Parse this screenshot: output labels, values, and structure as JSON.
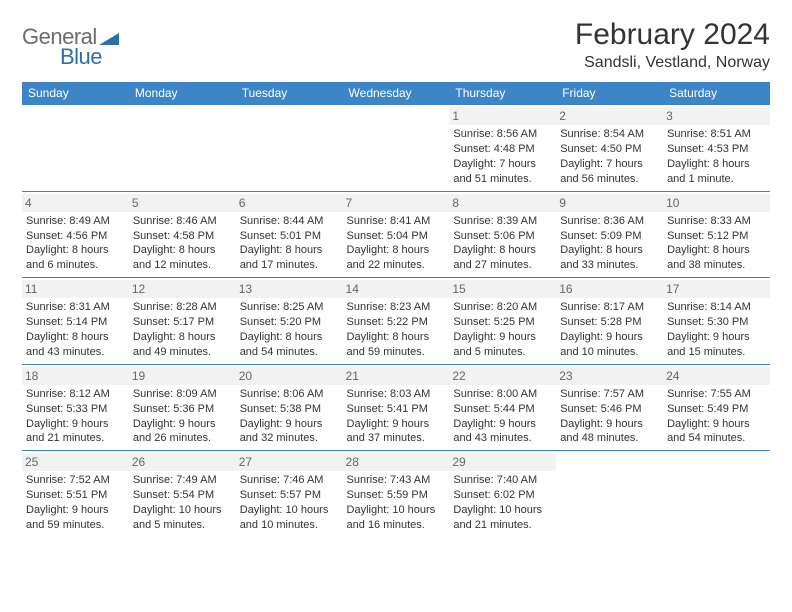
{
  "branding": {
    "word1": "General",
    "word2": "Blue",
    "color_general": "#6c6c6c",
    "color_blue": "#2f6fa8",
    "triangle_color": "#2f6fa8"
  },
  "header": {
    "title": "February 2024",
    "location": "Sandsli, Vestland, Norway"
  },
  "styling": {
    "header_bg": "#3d85c6",
    "header_text": "#ffffff",
    "row_border": "#3d85c6",
    "daynum_bg": "#f2f2f2",
    "daynum_color": "#666666",
    "body_text": "#333333",
    "cell_fontsize": 11,
    "daynum_fontsize": 12,
    "title_fontsize": 30,
    "location_fontsize": 16
  },
  "columns": [
    "Sunday",
    "Monday",
    "Tuesday",
    "Wednesday",
    "Thursday",
    "Friday",
    "Saturday"
  ],
  "weeks": [
    [
      null,
      null,
      null,
      null,
      {
        "n": "1",
        "sunrise": "8:56 AM",
        "sunset": "4:48 PM",
        "daylight": "7 hours and 51 minutes."
      },
      {
        "n": "2",
        "sunrise": "8:54 AM",
        "sunset": "4:50 PM",
        "daylight": "7 hours and 56 minutes."
      },
      {
        "n": "3",
        "sunrise": "8:51 AM",
        "sunset": "4:53 PM",
        "daylight": "8 hours and 1 minute."
      }
    ],
    [
      {
        "n": "4",
        "sunrise": "8:49 AM",
        "sunset": "4:56 PM",
        "daylight": "8 hours and 6 minutes."
      },
      {
        "n": "5",
        "sunrise": "8:46 AM",
        "sunset": "4:58 PM",
        "daylight": "8 hours and 12 minutes."
      },
      {
        "n": "6",
        "sunrise": "8:44 AM",
        "sunset": "5:01 PM",
        "daylight": "8 hours and 17 minutes."
      },
      {
        "n": "7",
        "sunrise": "8:41 AM",
        "sunset": "5:04 PM",
        "daylight": "8 hours and 22 minutes."
      },
      {
        "n": "8",
        "sunrise": "8:39 AM",
        "sunset": "5:06 PM",
        "daylight": "8 hours and 27 minutes."
      },
      {
        "n": "9",
        "sunrise": "8:36 AM",
        "sunset": "5:09 PM",
        "daylight": "8 hours and 33 minutes."
      },
      {
        "n": "10",
        "sunrise": "8:33 AM",
        "sunset": "5:12 PM",
        "daylight": "8 hours and 38 minutes."
      }
    ],
    [
      {
        "n": "11",
        "sunrise": "8:31 AM",
        "sunset": "5:14 PM",
        "daylight": "8 hours and 43 minutes."
      },
      {
        "n": "12",
        "sunrise": "8:28 AM",
        "sunset": "5:17 PM",
        "daylight": "8 hours and 49 minutes."
      },
      {
        "n": "13",
        "sunrise": "8:25 AM",
        "sunset": "5:20 PM",
        "daylight": "8 hours and 54 minutes."
      },
      {
        "n": "14",
        "sunrise": "8:23 AM",
        "sunset": "5:22 PM",
        "daylight": "8 hours and 59 minutes."
      },
      {
        "n": "15",
        "sunrise": "8:20 AM",
        "sunset": "5:25 PM",
        "daylight": "9 hours and 5 minutes."
      },
      {
        "n": "16",
        "sunrise": "8:17 AM",
        "sunset": "5:28 PM",
        "daylight": "9 hours and 10 minutes."
      },
      {
        "n": "17",
        "sunrise": "8:14 AM",
        "sunset": "5:30 PM",
        "daylight": "9 hours and 15 minutes."
      }
    ],
    [
      {
        "n": "18",
        "sunrise": "8:12 AM",
        "sunset": "5:33 PM",
        "daylight": "9 hours and 21 minutes."
      },
      {
        "n": "19",
        "sunrise": "8:09 AM",
        "sunset": "5:36 PM",
        "daylight": "9 hours and 26 minutes."
      },
      {
        "n": "20",
        "sunrise": "8:06 AM",
        "sunset": "5:38 PM",
        "daylight": "9 hours and 32 minutes."
      },
      {
        "n": "21",
        "sunrise": "8:03 AM",
        "sunset": "5:41 PM",
        "daylight": "9 hours and 37 minutes."
      },
      {
        "n": "22",
        "sunrise": "8:00 AM",
        "sunset": "5:44 PM",
        "daylight": "9 hours and 43 minutes."
      },
      {
        "n": "23",
        "sunrise": "7:57 AM",
        "sunset": "5:46 PM",
        "daylight": "9 hours and 48 minutes."
      },
      {
        "n": "24",
        "sunrise": "7:55 AM",
        "sunset": "5:49 PM",
        "daylight": "9 hours and 54 minutes."
      }
    ],
    [
      {
        "n": "25",
        "sunrise": "7:52 AM",
        "sunset": "5:51 PM",
        "daylight": "9 hours and 59 minutes."
      },
      {
        "n": "26",
        "sunrise": "7:49 AM",
        "sunset": "5:54 PM",
        "daylight": "10 hours and 5 minutes."
      },
      {
        "n": "27",
        "sunrise": "7:46 AM",
        "sunset": "5:57 PM",
        "daylight": "10 hours and 10 minutes."
      },
      {
        "n": "28",
        "sunrise": "7:43 AM",
        "sunset": "5:59 PM",
        "daylight": "10 hours and 16 minutes."
      },
      {
        "n": "29",
        "sunrise": "7:40 AM",
        "sunset": "6:02 PM",
        "daylight": "10 hours and 21 minutes."
      },
      null,
      null
    ]
  ],
  "labels": {
    "sunrise_prefix": "Sunrise: ",
    "sunset_prefix": "Sunset: ",
    "daylight_prefix": "Daylight: "
  }
}
